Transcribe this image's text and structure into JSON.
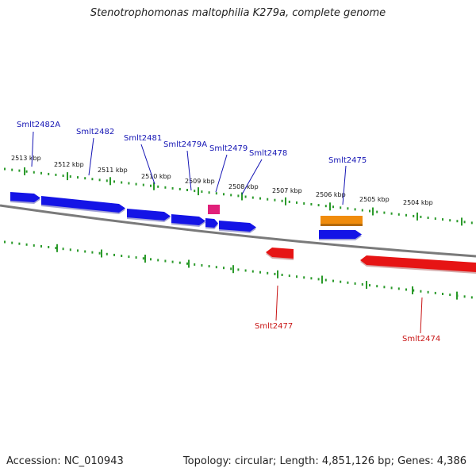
{
  "title": "Stenotrophomonas maltophilia K279a, complete genome",
  "footer": {
    "accession": "Accession: NC_010943",
    "info": "Topology: circular; Length: 4,851,126 bp; Genes: 4,386"
  },
  "colors": {
    "background": "#ffffff",
    "backbone": "#7a7a7a",
    "ticks": "#2a9a2a",
    "forward_gene": "#1414e6",
    "reverse_gene": "#e61414",
    "pink_feature": "#e0207a",
    "orange_feature": "#f08c0c",
    "forward_label": "#1414b4",
    "reverse_label": "#c81414"
  },
  "scale_labels": [
    "2513 kbp",
    "2512 kbp",
    "2511 kbp",
    "2510 kbp",
    "2509 kbp",
    "2508 kbp",
    "2507 kbp",
    "2506 kbp",
    "2505 kbp",
    "2504 kbp"
  ],
  "forward_genes": [
    {
      "name": "Smlt2482A"
    },
    {
      "name": "Smlt2482"
    },
    {
      "name": "Smlt2481"
    },
    {
      "name": "Smlt2479A"
    },
    {
      "name": "Smlt2479"
    },
    {
      "name": "Smlt2478"
    },
    {
      "name": "Smlt2475"
    }
  ],
  "reverse_genes": [
    {
      "name": "Smlt2477"
    },
    {
      "name": "Smlt2474"
    }
  ]
}
